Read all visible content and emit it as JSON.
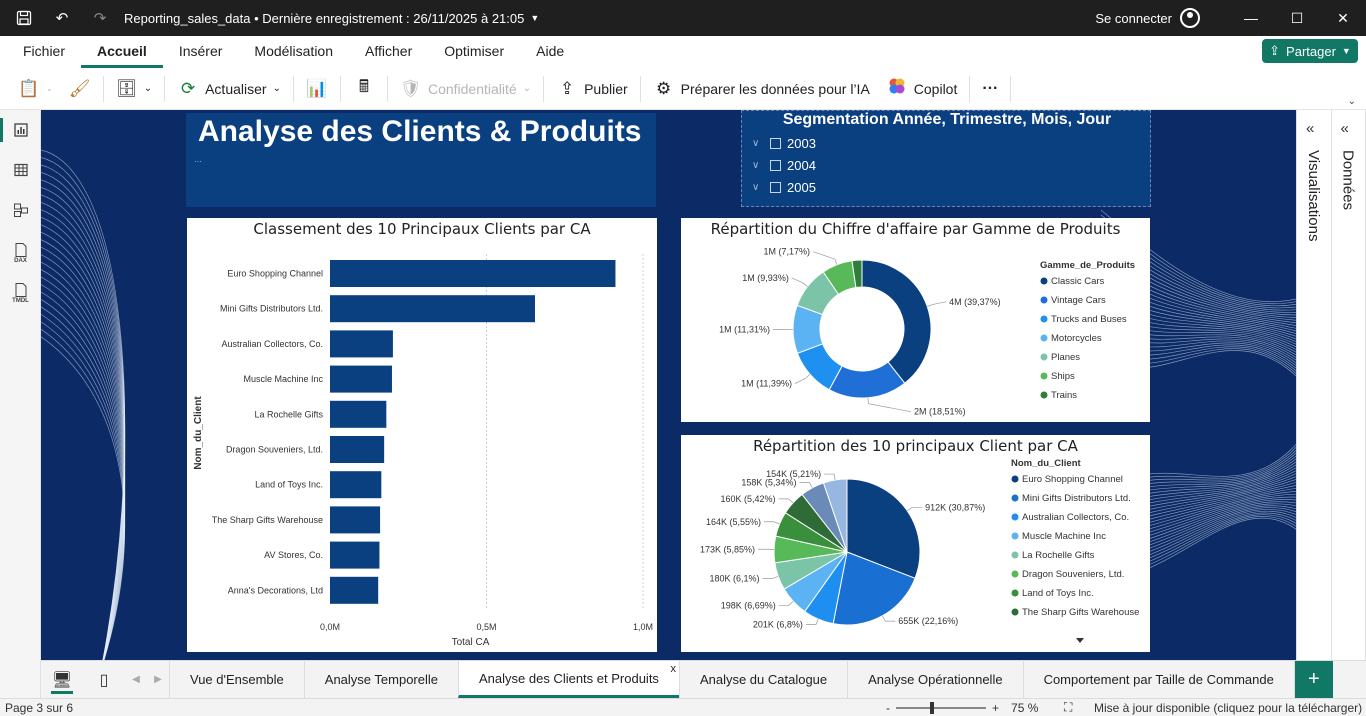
{
  "window": {
    "doc_title": "Reporting_sales_data • Dernière enregistrement : 26/11/2025 à 21:05",
    "connect_label": "Se connecter"
  },
  "menu": {
    "items": [
      "Fichier",
      "Accueil",
      "Insérer",
      "Modélisation",
      "Afficher",
      "Optimiser",
      "Aide"
    ],
    "share_label": "Partager"
  },
  "toolbar": {
    "refresh_label": "Actualiser",
    "confidentiality_label": "Confidentialité",
    "publish_label": "Publier",
    "prepare_label": "Préparer les données pour l’IA",
    "copilot_label": "Copilot"
  },
  "panes": {
    "visualisations_label": "Visualisations",
    "donnees_label": "Données"
  },
  "report": {
    "title": "Analyse des Clients & Produits",
    "slicer": {
      "title": "Segmentation Année, Trimestre, Mois, Jour",
      "years": [
        "2003",
        "2004",
        "2005"
      ]
    }
  },
  "chart_data": [
    {
      "type": "bar",
      "title": "Classement des 10 Principaux Clients par CA",
      "xlabel": "Total CA",
      "ylabel": "Nom_du_Client",
      "orientation": "horizontal",
      "categories": [
        "Euro Shopping Channel",
        "Mini Gifts Distributors Ltd.",
        "Australian Collectors, Co.",
        "Muscle Machine Inc",
        "La Rochelle Gifts",
        "Dragon Souveniers, Ltd.",
        "Land of Toys Inc.",
        "The Sharp Gifts Warehouse",
        "AV Stores, Co.",
        "Anna's Decorations, Ltd"
      ],
      "values": [
        912000,
        655000,
        201000,
        198000,
        180000,
        173000,
        164000,
        160000,
        158000,
        154000
      ],
      "xlim": [
        0,
        1000000
      ],
      "xticks": [
        "0,0M",
        "0,5M",
        "1,0M"
      ],
      "color": "#0a3f80"
    },
    {
      "type": "pie",
      "variant": "donut",
      "title": "Répartition du Chiffre d'affaire par Gamme de Produits",
      "legend_title": "Gamme_de_Produits",
      "legend_position": "right",
      "categories": [
        "Classic Cars",
        "Vintage Cars",
        "Trucks and Buses",
        "Motorcycles",
        "Planes",
        "Ships",
        "Trains"
      ],
      "percents": [
        39.37,
        18.51,
        11.39,
        11.31,
        9.93,
        7.17,
        2.32
      ],
      "labels": [
        "4M (39,37%)",
        "2M (18,51%)",
        "1M (11,39%)",
        "1M (11,31%)",
        "1M (9,93%)",
        "1M (7,17%)",
        ""
      ],
      "colors": [
        "#0a3f80",
        "#1f6fd6",
        "#1e90f0",
        "#5cb3f3",
        "#7cc4a8",
        "#57b957",
        "#2f7f3a"
      ]
    },
    {
      "type": "pie",
      "title": "Répartition des 10 principaux Client par CA",
      "legend_title": "Nom_du_Client",
      "legend_position": "right",
      "categories": [
        "Euro Shopping Channel",
        "Mini Gifts Distributors Ltd.",
        "Australian Collectors, Co.",
        "Muscle Machine Inc",
        "La Rochelle Gifts",
        "Dragon Souveniers, Ltd.",
        "Land of Toys Inc.",
        "The Sharp Gifts Warehouse",
        "AV Stores, Co.",
        "Anna's Decorations, Ltd"
      ],
      "percents": [
        30.87,
        22.16,
        6.8,
        6.69,
        6.1,
        5.85,
        5.55,
        5.42,
        5.34,
        5.21
      ],
      "labels": [
        "912K (30,87%)",
        "655K (22,16%)",
        "201K (6,8%)",
        "198K (6,69%)",
        "180K (6,1%)",
        "173K (5,85%)",
        "164K (5,55%)",
        "160K (5,42%)",
        "158K (5,34%)",
        "154K (5,21%)"
      ],
      "legend_visible": [
        "Euro Shopping Channel",
        "Mini Gifts Distributors Ltd.",
        "Australian Collectors, Co.",
        "Muscle Machine Inc",
        "La Rochelle Gifts",
        "Dragon Souveniers, Ltd.",
        "Land of Toys Inc.",
        "The Sharp Gifts Warehouse"
      ],
      "colors": [
        "#0a3f80",
        "#1a6fd2",
        "#1e8ff0",
        "#5cb3f3",
        "#7cc4a8",
        "#57b957",
        "#3a8f3d",
        "#2f6b36",
        "#6a8ab8",
        "#98b7e0"
      ]
    }
  ],
  "tabs": {
    "pages": [
      "Vue d'Ensemble",
      "Analyse Temporelle",
      "Analyse des Clients et Produits",
      "Analyse du Catalogue",
      "Analyse Opérationnelle",
      "Comportement par Taille de Commande"
    ],
    "active_index": 2
  },
  "status": {
    "page_info": "Page 3 sur 6",
    "zoom_level": "75 %",
    "update_text": "Mise à jour disponible (cliquez pour la télécharger)"
  }
}
